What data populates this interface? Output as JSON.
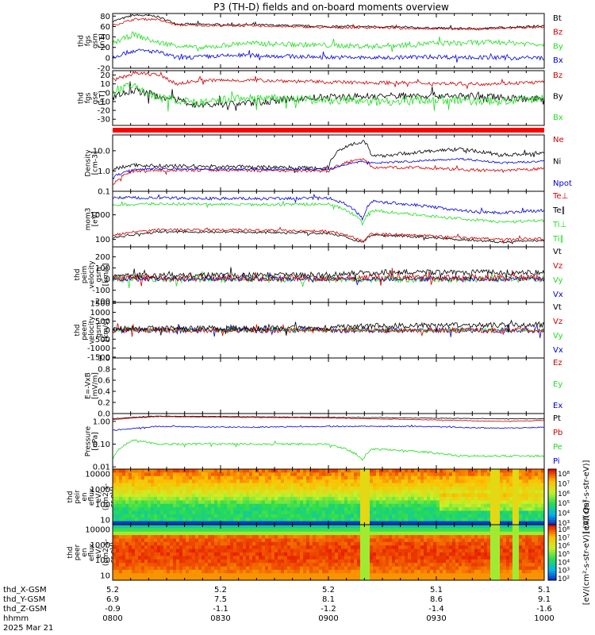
{
  "title": "P3 (TH-D) fields and on-board moments overview",
  "colors": {
    "black": "#000000",
    "red": "#d00000",
    "green": "#22dd22",
    "blue": "#0000dd",
    "bar": "#ff0000"
  },
  "chart_data": [
    {
      "type": "line",
      "name": "fgs_gsm",
      "ylabel": [
        "thd",
        "fgs",
        "gsm",
        "[nT]"
      ],
      "yticks": [
        "80",
        "60",
        "40",
        "20",
        "0",
        "-20"
      ],
      "ylim": [
        -20,
        85
      ],
      "scale": "linear",
      "legend": [
        {
          "label": "Bt",
          "color": "#000000"
        },
        {
          "label": "Bz",
          "color": "#d00000"
        },
        {
          "label": "By",
          "color": "#22dd22"
        },
        {
          "label": "Bx",
          "color": "#0000dd"
        }
      ],
      "series": [
        {
          "color": "#000000",
          "x": [
            0,
            0.05,
            0.1,
            0.15,
            0.22,
            0.35,
            0.5,
            0.6,
            0.75,
            0.85,
            0.95,
            1.0
          ],
          "y": [
            70,
            82,
            80,
            65,
            64,
            63,
            60,
            60,
            57,
            56,
            60,
            61
          ],
          "noise": 2
        },
        {
          "color": "#d00000",
          "x": [
            0,
            0.05,
            0.1,
            0.15,
            0.22,
            0.35,
            0.5,
            0.6,
            0.75,
            0.85,
            0.95,
            1.0
          ],
          "y": [
            62,
            74,
            74,
            63,
            62,
            61,
            58,
            58,
            56,
            55,
            58,
            58
          ],
          "noise": 2
        },
        {
          "color": "#22dd22",
          "x": [
            0,
            0.05,
            0.1,
            0.2,
            0.3,
            0.45,
            0.6,
            0.75,
            0.9,
            1.0
          ],
          "y": [
            28,
            45,
            30,
            18,
            28,
            25,
            22,
            28,
            30,
            26
          ],
          "noise": 5
        },
        {
          "color": "#0000dd",
          "x": [
            0,
            0.05,
            0.1,
            0.15,
            0.3,
            0.45,
            0.6,
            0.75,
            0.9,
            1.0
          ],
          "y": [
            2,
            14,
            12,
            0,
            5,
            2,
            0,
            2,
            0,
            0
          ],
          "noise": 4
        }
      ]
    },
    {
      "type": "line",
      "name": "fgs_gse",
      "ylabel": [
        "thd",
        "fgs",
        "gse",
        "[nT]"
      ],
      "yticks": [
        "20",
        "10",
        "0",
        "-10",
        "-20",
        "-30"
      ],
      "ylim": [
        -37,
        25
      ],
      "scale": "linear",
      "legend": [
        {
          "label": "Bz",
          "color": "#d00000"
        },
        {
          "label": "By",
          "color": "#000000"
        },
        {
          "label": "Bx",
          "color": "#22dd22"
        }
      ],
      "series": [
        {
          "color": "#d00000",
          "x": [
            0,
            0.05,
            0.1,
            0.15,
            0.2,
            0.35,
            0.5,
            0.7,
            0.85,
            1.0
          ],
          "y": [
            14,
            22,
            21,
            10,
            14,
            14,
            12,
            11,
            10,
            12
          ],
          "noise": 2
        },
        {
          "color": "#000000",
          "x": [
            0,
            0.05,
            0.1,
            0.2,
            0.3,
            0.45,
            0.6,
            0.75,
            0.9,
            1.0
          ],
          "y": [
            -5,
            3,
            -3,
            -14,
            -12,
            -6,
            -4,
            -3,
            -5,
            -8
          ],
          "noise": 4
        },
        {
          "color": "#22dd22",
          "x": [
            0,
            0.05,
            0.1,
            0.2,
            0.3,
            0.45,
            0.6,
            0.75,
            0.9,
            1.0
          ],
          "y": [
            2,
            8,
            -5,
            -12,
            -6,
            -8,
            -10,
            -8,
            -10,
            -6
          ],
          "noise": 5
        }
      ]
    },
    {
      "type": "line",
      "name": "density",
      "ylabel": [
        "Density",
        "[cm-3]"
      ],
      "yticks": [
        "10.0",
        "1.0",
        "0.1"
      ],
      "ylim": [
        0.1,
        60
      ],
      "scale": "log",
      "legend": [
        {
          "label": "Ne",
          "color": "#d00000"
        },
        {
          "label": "Ni",
          "color": "#000000"
        },
        {
          "label": "Npot",
          "color": "#0000dd"
        }
      ],
      "series": [
        {
          "color": "#000000",
          "x": [
            0,
            0.05,
            0.1,
            0.3,
            0.5,
            0.58,
            0.6,
            0.7,
            0.8,
            0.9,
            1.0
          ],
          "y": [
            1.2,
            2.0,
            1.8,
            1.6,
            1.4,
            30,
            5,
            8,
            12,
            6,
            8
          ],
          "noise": 0.15
        },
        {
          "color": "#d00000",
          "x": [
            0,
            0.05,
            0.1,
            0.3,
            0.5,
            0.58,
            0.6,
            0.7,
            0.8,
            0.9,
            1.0
          ],
          "y": [
            0.2,
            1.0,
            1.1,
            1.1,
            1.0,
            4,
            1.5,
            1.5,
            1.2,
            1.0,
            1.3
          ],
          "noise": 0.12
        },
        {
          "color": "#0000dd",
          "x": [
            0,
            0.05,
            0.1,
            0.3,
            0.5,
            0.58,
            0.6,
            0.7,
            0.8,
            0.9,
            1.0
          ],
          "y": [
            0.5,
            1.2,
            1.3,
            1.2,
            1.2,
            3,
            2.5,
            3,
            4,
            2.5,
            3
          ],
          "noise": 0.08
        }
      ]
    },
    {
      "type": "line",
      "name": "temperature",
      "ylabel": [
        "mom3",
        "[eV]"
      ],
      "yticks": [
        "1000",
        "100"
      ],
      "ylim": [
        50,
        9000
      ],
      "scale": "log",
      "legend": [
        {
          "label": "Te⊥",
          "color": "#d00000"
        },
        {
          "label": "Te∥",
          "color": "#000000"
        },
        {
          "label": "Ti⊥",
          "color": "#22dd22"
        },
        {
          "label": "Ti∥",
          "color": "#22dd22"
        }
      ],
      "series": [
        {
          "color": "#0000dd",
          "x": [
            0,
            0.1,
            0.3,
            0.5,
            0.58,
            0.6,
            0.7,
            0.8,
            0.9,
            1.0
          ],
          "y": [
            5000,
            4800,
            4500,
            4700,
            600,
            3500,
            2500,
            1500,
            1200,
            1500
          ],
          "noise": 0.1
        },
        {
          "color": "#22dd22",
          "x": [
            0,
            0.1,
            0.3,
            0.5,
            0.58,
            0.6,
            0.7,
            0.8,
            0.9,
            1.0
          ],
          "y": [
            2500,
            2800,
            2600,
            2700,
            400,
            1500,
            1000,
            700,
            500,
            600
          ],
          "noise": 0.1
        },
        {
          "color": "#000000",
          "x": [
            0,
            0.1,
            0.3,
            0.5,
            0.58,
            0.6,
            0.7,
            0.8,
            0.9,
            1.0
          ],
          "y": [
            120,
            200,
            200,
            180,
            70,
            150,
            130,
            100,
            80,
            90
          ],
          "noise": 0.08
        },
        {
          "color": "#d00000",
          "x": [
            0,
            0.1,
            0.3,
            0.5,
            0.58,
            0.6,
            0.7,
            0.8,
            0.9,
            1.0
          ],
          "y": [
            150,
            250,
            240,
            220,
            80,
            170,
            150,
            120,
            100,
            110
          ],
          "noise": 0.08
        }
      ]
    },
    {
      "type": "line",
      "name": "ion_velocity",
      "ylabel": [
        "thd",
        "peim",
        "velocity",
        "gsm",
        "[km/s]"
      ],
      "yticks": [
        "200",
        "100",
        "0",
        "-100",
        "-200"
      ],
      "ylim": [
        -210,
        290
      ],
      "scale": "linear",
      "legend": [
        {
          "label": "Vt",
          "color": "#000000"
        },
        {
          "label": "Vz",
          "color": "#d00000"
        },
        {
          "label": "Vy",
          "color": "#22dd22"
        },
        {
          "label": "Vx",
          "color": "#0000dd"
        }
      ],
      "series": [
        {
          "color": "#22dd22",
          "x": [
            0,
            1
          ],
          "y": [
            0,
            0
          ],
          "noise": 30
        },
        {
          "color": "#0000dd",
          "x": [
            0,
            1
          ],
          "y": [
            0,
            0
          ],
          "noise": 20
        },
        {
          "color": "#d00000",
          "x": [
            0,
            1
          ],
          "y": [
            10,
            10
          ],
          "noise": 30
        },
        {
          "color": "#000000",
          "x": [
            0,
            0.5,
            0.6,
            1.0
          ],
          "y": [
            30,
            40,
            60,
            60
          ],
          "noise": 25
        }
      ]
    },
    {
      "type": "line",
      "name": "electron_velocity",
      "ylabel": [
        "thd",
        "peem",
        "velocity",
        "gsm",
        "[km/s]"
      ],
      "yticks": [
        "1500",
        "1000",
        "500",
        "0",
        "-500",
        "-1000",
        "-1500"
      ],
      "ylim": [
        -1550,
        1550
      ],
      "scale": "linear",
      "legend": [
        {
          "label": "Vt",
          "color": "#000000"
        },
        {
          "label": "Vz",
          "color": "#d00000"
        },
        {
          "label": "Vy",
          "color": "#22dd22"
        },
        {
          "label": "Vx",
          "color": "#0000dd"
        }
      ],
      "series": [
        {
          "color": "#0000dd",
          "x": [
            0,
            1
          ],
          "y": [
            0,
            0
          ],
          "noise": 150
        },
        {
          "color": "#22dd22",
          "x": [
            0,
            1
          ],
          "y": [
            0,
            0
          ],
          "noise": 100
        },
        {
          "color": "#d00000",
          "x": [
            0,
            1
          ],
          "y": [
            0,
            0
          ],
          "noise": 150
        },
        {
          "color": "#000000",
          "x": [
            0,
            0.5,
            0.6,
            1.0
          ],
          "y": [
            100,
            120,
            250,
            300
          ],
          "noise": 150
        }
      ]
    },
    {
      "type": "line",
      "name": "efield",
      "ylabel": [
        "E=-VxB",
        "[mV/m]"
      ],
      "yticks": [
        "1.0",
        "0.8",
        "0.6",
        "0.4",
        "0.2",
        "0.0"
      ],
      "ylim": [
        0,
        1
      ],
      "scale": "linear",
      "legend": [
        {
          "label": "Ez",
          "color": "#d00000"
        },
        {
          "label": "Ey",
          "color": "#22dd22"
        },
        {
          "label": "Ex",
          "color": "#0000dd"
        }
      ],
      "series": []
    },
    {
      "type": "line",
      "name": "pressure",
      "ylabel": [
        "Pressure",
        "[nPa]"
      ],
      "yticks": [
        "1.00",
        "0.10",
        "0.01"
      ],
      "ylim": [
        0.008,
        2.2
      ],
      "scale": "log",
      "legend": [
        {
          "label": "Pt",
          "color": "#000000"
        },
        {
          "label": "Pb",
          "color": "#d00000"
        },
        {
          "label": "Pe",
          "color": "#22dd22"
        },
        {
          "label": "Pi",
          "color": "#0000dd"
        }
      ],
      "series": [
        {
          "color": "#000000",
          "x": [
            0,
            0.1,
            0.3,
            0.5,
            0.7,
            0.9,
            1.0
          ],
          "y": [
            1.3,
            1.7,
            1.6,
            1.5,
            1.4,
            1.3,
            1.3
          ],
          "noise": 0.02
        },
        {
          "color": "#d00000",
          "x": [
            0,
            0.1,
            0.3,
            0.5,
            0.7,
            0.9,
            1.0
          ],
          "y": [
            1.2,
            1.6,
            1.5,
            1.4,
            1.2,
            1.0,
            1.1
          ],
          "noise": 0.02
        },
        {
          "color": "#0000dd",
          "x": [
            0,
            0.1,
            0.3,
            0.5,
            0.7,
            0.9,
            1.0
          ],
          "y": [
            0.4,
            0.6,
            0.55,
            0.6,
            0.6,
            0.5,
            0.55
          ],
          "noise": 0.04
        },
        {
          "color": "#22dd22",
          "x": [
            0,
            0.05,
            0.1,
            0.3,
            0.5,
            0.58,
            0.6,
            0.7,
            0.8,
            0.9,
            1.0
          ],
          "y": [
            0.02,
            0.15,
            0.1,
            0.1,
            0.1,
            0.02,
            0.06,
            0.05,
            0.03,
            0.03,
            0.03
          ],
          "noise": 0.08
        }
      ]
    },
    {
      "type": "heatmap",
      "name": "ion_eflux",
      "ylabel": [
        "thd",
        "peir",
        "en",
        "eflux",
        "eV/",
        "(cm2-s-",
        "sr-eV)"
      ],
      "yticks": [
        "10000",
        "1000",
        "100",
        "10"
      ],
      "ylim": [
        5,
        20000
      ],
      "scale": "log",
      "colorbar_label": "[eV/(cm²-s-str-eV)]",
      "colorbar_ticks": [
        "10⁸",
        "10⁷",
        "10⁶",
        "10⁵",
        "10⁴",
        "10³"
      ]
    },
    {
      "type": "heatmap",
      "name": "electron_eflux",
      "ylabel": [
        "thd",
        "peer",
        "en",
        "eflux",
        "eV/",
        "(cm2-s-",
        "sr-eV)"
      ],
      "yticks": [
        "10000",
        "1000",
        "100",
        "10"
      ],
      "ylim": [
        5,
        20000
      ],
      "scale": "log",
      "colorbar_label": "[eV/(cm²-s-str-eV)] (All Qs)",
      "colorbar_ticks": [
        "10⁸",
        "10⁷",
        "10⁶",
        "10⁵",
        "10⁴",
        "10³",
        "10²"
      ]
    }
  ],
  "x_axis": {
    "row_labels": [
      "thd_X-GSM",
      "thd_Y-GSM",
      "thd_Z-GSM",
      "hhmm",
      "2025 Mar 21"
    ],
    "ticks": [
      {
        "frac": 0.0,
        "vals": [
          "5.2",
          "6.9",
          "-0.9",
          "0800"
        ]
      },
      {
        "frac": 0.25,
        "vals": [
          "5.2",
          "7.5",
          "-1.1",
          "0830"
        ]
      },
      {
        "frac": 0.5,
        "vals": [
          "5.2",
          "8.1",
          "-1.2",
          "0900"
        ]
      },
      {
        "frac": 0.75,
        "vals": [
          "5.1",
          "8.6",
          "-1.4",
          "0930"
        ]
      },
      {
        "frac": 1.0,
        "vals": [
          "5.1",
          "9.1",
          "-1.6",
          "1000"
        ]
      }
    ]
  }
}
